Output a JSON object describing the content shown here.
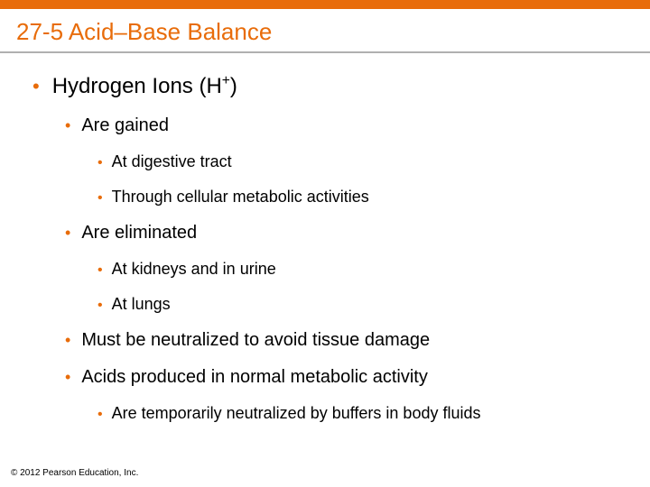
{
  "colors": {
    "accent": "#e86c0a",
    "divider": "#b0b0b0",
    "text": "#000000",
    "background": "#ffffff"
  },
  "title": "27-5 Acid–Base Balance",
  "heading_prefix": "Hydrogen Ions (H",
  "heading_sup": "+",
  "heading_suffix": ")",
  "items": {
    "gained": "Are gained",
    "gained_sub1": "At digestive tract",
    "gained_sub2": "Through cellular metabolic activities",
    "eliminated": "Are eliminated",
    "eliminated_sub1": "At kidneys and in urine",
    "eliminated_sub2": "At lungs",
    "neutralized": "Must be neutralized to avoid tissue damage",
    "acids": "Acids produced in normal metabolic activity",
    "acids_sub1": "Are temporarily neutralized by buffers in body fluids"
  },
  "footer": "© 2012 Pearson Education, Inc."
}
